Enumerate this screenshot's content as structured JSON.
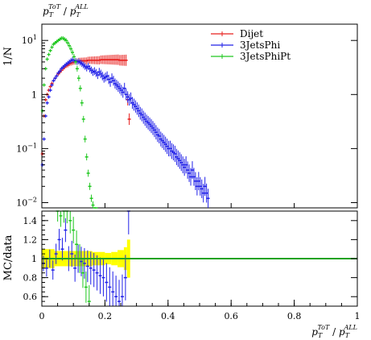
{
  "chart_data": [
    {
      "type": "line",
      "panel": "main",
      "title": "p_T^{ToT} / p_T^{ALL}",
      "title_parts": {
        "base1": "p",
        "sub1": "T",
        "sup1": "ToT",
        "slash": " / ",
        "base2": "p",
        "sub2": "T",
        "sup2": "ALL"
      },
      "ylabel": "1/N",
      "yscale": "log",
      "xlim": [
        0,
        1
      ],
      "ylim": [
        0.008,
        20
      ],
      "yticks": [
        {
          "value": 0.01,
          "base": "10",
          "exp": "−2"
        },
        {
          "value": 0.1,
          "base": "10",
          "exp": "−1"
        },
        {
          "value": 1,
          "base": "1",
          "exp": ""
        },
        {
          "value": 10,
          "base": "10",
          "exp": "1"
        }
      ],
      "legend_position": "top-right",
      "series": [
        {
          "name": "Dijet",
          "color": "#e8201e",
          "x": [
            0.002,
            0.007,
            0.012,
            0.017,
            0.022,
            0.027,
            0.032,
            0.037,
            0.042,
            0.047,
            0.052,
            0.057,
            0.062,
            0.067,
            0.072,
            0.077,
            0.082,
            0.087,
            0.092,
            0.097,
            0.102,
            0.107,
            0.112,
            0.117,
            0.122,
            0.127,
            0.132,
            0.137,
            0.142,
            0.147,
            0.152,
            0.157,
            0.162,
            0.167,
            0.172,
            0.177,
            0.182,
            0.187,
            0.192,
            0.197,
            0.202,
            0.207,
            0.212,
            0.217,
            0.222,
            0.227,
            0.232,
            0.237,
            0.242,
            0.247,
            0.252,
            0.257,
            0.262,
            0.267,
            0.272,
            0.277
          ],
          "y": [
            0.08,
            0.4,
            0.8,
            1.0,
            1.2,
            1.4,
            1.6,
            1.8,
            2.0,
            2.2,
            2.4,
            2.6,
            2.8,
            3.0,
            3.2,
            3.4,
            3.5,
            3.7,
            3.8,
            3.9,
            4.0,
            4.1,
            4.1,
            4.2,
            4.2,
            4.2,
            4.2,
            4.2,
            4.2,
            4.3,
            4.3,
            4.3,
            4.3,
            4.3,
            4.3,
            4.3,
            4.3,
            4.4,
            4.4,
            4.4,
            4.4,
            4.4,
            4.4,
            4.4,
            4.4,
            4.4,
            4.4,
            4.4,
            4.4,
            4.3,
            4.3,
            4.3,
            4.3,
            4.3,
            0.8,
            0.35
          ]
        },
        {
          "name": "3JetsPhi",
          "color": "#2121e8",
          "x": [
            0.002,
            0.007,
            0.012,
            0.017,
            0.022,
            0.027,
            0.032,
            0.037,
            0.042,
            0.047,
            0.052,
            0.057,
            0.062,
            0.067,
            0.072,
            0.077,
            0.082,
            0.087,
            0.092,
            0.097,
            0.102,
            0.107,
            0.112,
            0.117,
            0.122,
            0.127,
            0.132,
            0.137,
            0.142,
            0.147,
            0.152,
            0.157,
            0.162,
            0.167,
            0.172,
            0.177,
            0.182,
            0.187,
            0.192,
            0.197,
            0.202,
            0.207,
            0.212,
            0.217,
            0.222,
            0.227,
            0.232,
            0.237,
            0.242,
            0.247,
            0.252,
            0.257,
            0.262,
            0.267,
            0.272,
            0.277,
            0.282,
            0.287,
            0.292,
            0.297,
            0.302,
            0.307,
            0.312,
            0.317,
            0.322,
            0.327,
            0.332,
            0.337,
            0.342,
            0.347,
            0.352,
            0.357,
            0.362,
            0.367,
            0.372,
            0.377,
            0.382,
            0.387,
            0.392,
            0.397,
            0.402,
            0.407,
            0.412,
            0.417,
            0.422,
            0.427,
            0.432,
            0.437,
            0.442,
            0.447,
            0.452,
            0.457,
            0.462,
            0.467,
            0.472,
            0.477,
            0.482,
            0.487,
            0.492,
            0.497,
            0.502,
            0.507,
            0.512,
            0.517,
            0.522,
            0.527
          ],
          "y": [
            0.05,
            0.15,
            0.4,
            0.7,
            0.9,
            1.2,
            1.5,
            1.8,
            2.0,
            2.2,
            2.5,
            2.7,
            3.0,
            3.2,
            3.4,
            3.6,
            3.8,
            4.0,
            4.2,
            4.4,
            4.3,
            4.2,
            4.0,
            4.1,
            3.9,
            3.7,
            3.5,
            3.3,
            3.1,
            3.3,
            3.0,
            2.8,
            2.6,
            2.7,
            2.5,
            2.3,
            2.6,
            2.4,
            2.2,
            2.0,
            2.1,
            2.2,
            1.9,
            1.7,
            2.0,
            1.8,
            1.6,
            1.5,
            1.4,
            1.3,
            1.2,
            1.1,
            1.3,
            1.0,
            0.9,
            0.8,
            0.85,
            0.7,
            0.65,
            0.6,
            0.55,
            0.5,
            0.45,
            0.42,
            0.38,
            0.35,
            0.32,
            0.3,
            0.28,
            0.26,
            0.24,
            0.22,
            0.2,
            0.18,
            0.17,
            0.15,
            0.14,
            0.13,
            0.12,
            0.11,
            0.1,
            0.1,
            0.09,
            0.085,
            0.08,
            0.07,
            0.065,
            0.06,
            0.055,
            0.05,
            0.045,
            0.05,
            0.04,
            0.035,
            0.03,
            0.04,
            0.03,
            0.025,
            0.02,
            0.025,
            0.02,
            0.018,
            0.015,
            0.02,
            0.015,
            0.012
          ]
        },
        {
          "name": "3JetsPhiPt",
          "color": "#21c821",
          "x": [
            0.002,
            0.007,
            0.012,
            0.017,
            0.022,
            0.027,
            0.032,
            0.037,
            0.042,
            0.047,
            0.052,
            0.057,
            0.062,
            0.067,
            0.072,
            0.077,
            0.082,
            0.087,
            0.092,
            0.097,
            0.102,
            0.107,
            0.112,
            0.117,
            0.122,
            0.127,
            0.132,
            0.137,
            0.142,
            0.147,
            0.152,
            0.157,
            0.162,
            0.167,
            0.172
          ],
          "y": [
            0.5,
            1.5,
            3.0,
            4.5,
            5.5,
            6.5,
            7.5,
            8.5,
            9.0,
            9.5,
            10.0,
            10.5,
            11.0,
            11.0,
            10.5,
            10.0,
            9.0,
            8.0,
            7.0,
            6.0,
            5.0,
            4.0,
            3.0,
            2.0,
            1.3,
            0.7,
            0.35,
            0.15,
            0.07,
            0.035,
            0.02,
            0.012,
            0.009,
            0.007,
            0.005
          ]
        }
      ]
    },
    {
      "type": "line",
      "panel": "ratio",
      "ylabel": "MC/data",
      "xlabel": "p_T^{ToT} / p_T^{ALL}",
      "xlabel_parts": {
        "base1": "p",
        "sub1": "T",
        "sup1": "ToT",
        "slash": " / ",
        "base2": "p",
        "sub2": "T",
        "sup2": "ALL"
      },
      "xlim": [
        0,
        1
      ],
      "ylim": [
        0.5,
        1.5
      ],
      "xticks": [
        {
          "value": 0,
          "label": "0"
        },
        {
          "value": 0.2,
          "label": "0.2"
        },
        {
          "value": 0.4,
          "label": "0.4"
        },
        {
          "value": 0.6,
          "label": "0.6"
        },
        {
          "value": 0.8,
          "label": "0.8"
        },
        {
          "value": 1,
          "label": "1"
        }
      ],
      "yticks": [
        {
          "value": 0.6,
          "label": "0.6"
        },
        {
          "value": 0.8,
          "label": "0.8"
        },
        {
          "value": 1.0,
          "label": "1"
        },
        {
          "value": 1.2,
          "label": "1.2"
        },
        {
          "value": 1.4,
          "label": "1.4"
        }
      ],
      "reference": {
        "value": 1.0,
        "color": "#21a321"
      },
      "band": {
        "color": "#ffff00",
        "x": [
          0.0,
          0.02,
          0.04,
          0.06,
          0.08,
          0.1,
          0.12,
          0.14,
          0.16,
          0.18,
          0.2,
          0.22,
          0.24,
          0.26,
          0.27,
          0.28
        ],
        "half_width": [
          0.1,
          0.1,
          0.08,
          0.08,
          0.08,
          0.08,
          0.08,
          0.08,
          0.07,
          0.07,
          0.06,
          0.07,
          0.09,
          0.12,
          0.2,
          0.0
        ]
      },
      "series": [
        {
          "name": "3JetsPhi",
          "color": "#2121e8",
          "x": [
            0.005,
            0.015,
            0.025,
            0.035,
            0.045,
            0.055,
            0.065,
            0.075,
            0.085,
            0.095,
            0.105,
            0.115,
            0.125,
            0.135,
            0.145,
            0.155,
            0.165,
            0.175,
            0.185,
            0.195,
            0.205,
            0.215,
            0.225,
            0.235,
            0.245,
            0.255,
            0.265,
            0.275
          ],
          "y": [
            0.95,
            0.9,
            1.0,
            0.88,
            1.05,
            1.2,
            1.1,
            1.3,
            1.0,
            1.05,
            0.9,
            1.0,
            0.97,
            0.95,
            0.92,
            0.9,
            0.88,
            0.85,
            0.82,
            0.8,
            0.75,
            0.7,
            0.65,
            0.6,
            0.55,
            0.6,
            0.8,
            1.5
          ]
        },
        {
          "name": "3JetsPhiPt",
          "color": "#21c821",
          "x": [
            0.05,
            0.06,
            0.07,
            0.08,
            0.09,
            0.1,
            0.11,
            0.12,
            0.13,
            0.14,
            0.15
          ],
          "y": [
            1.5,
            1.45,
            1.5,
            1.5,
            1.4,
            1.3,
            1.15,
            1.0,
            0.85,
            0.7,
            0.55
          ]
        }
      ]
    }
  ]
}
